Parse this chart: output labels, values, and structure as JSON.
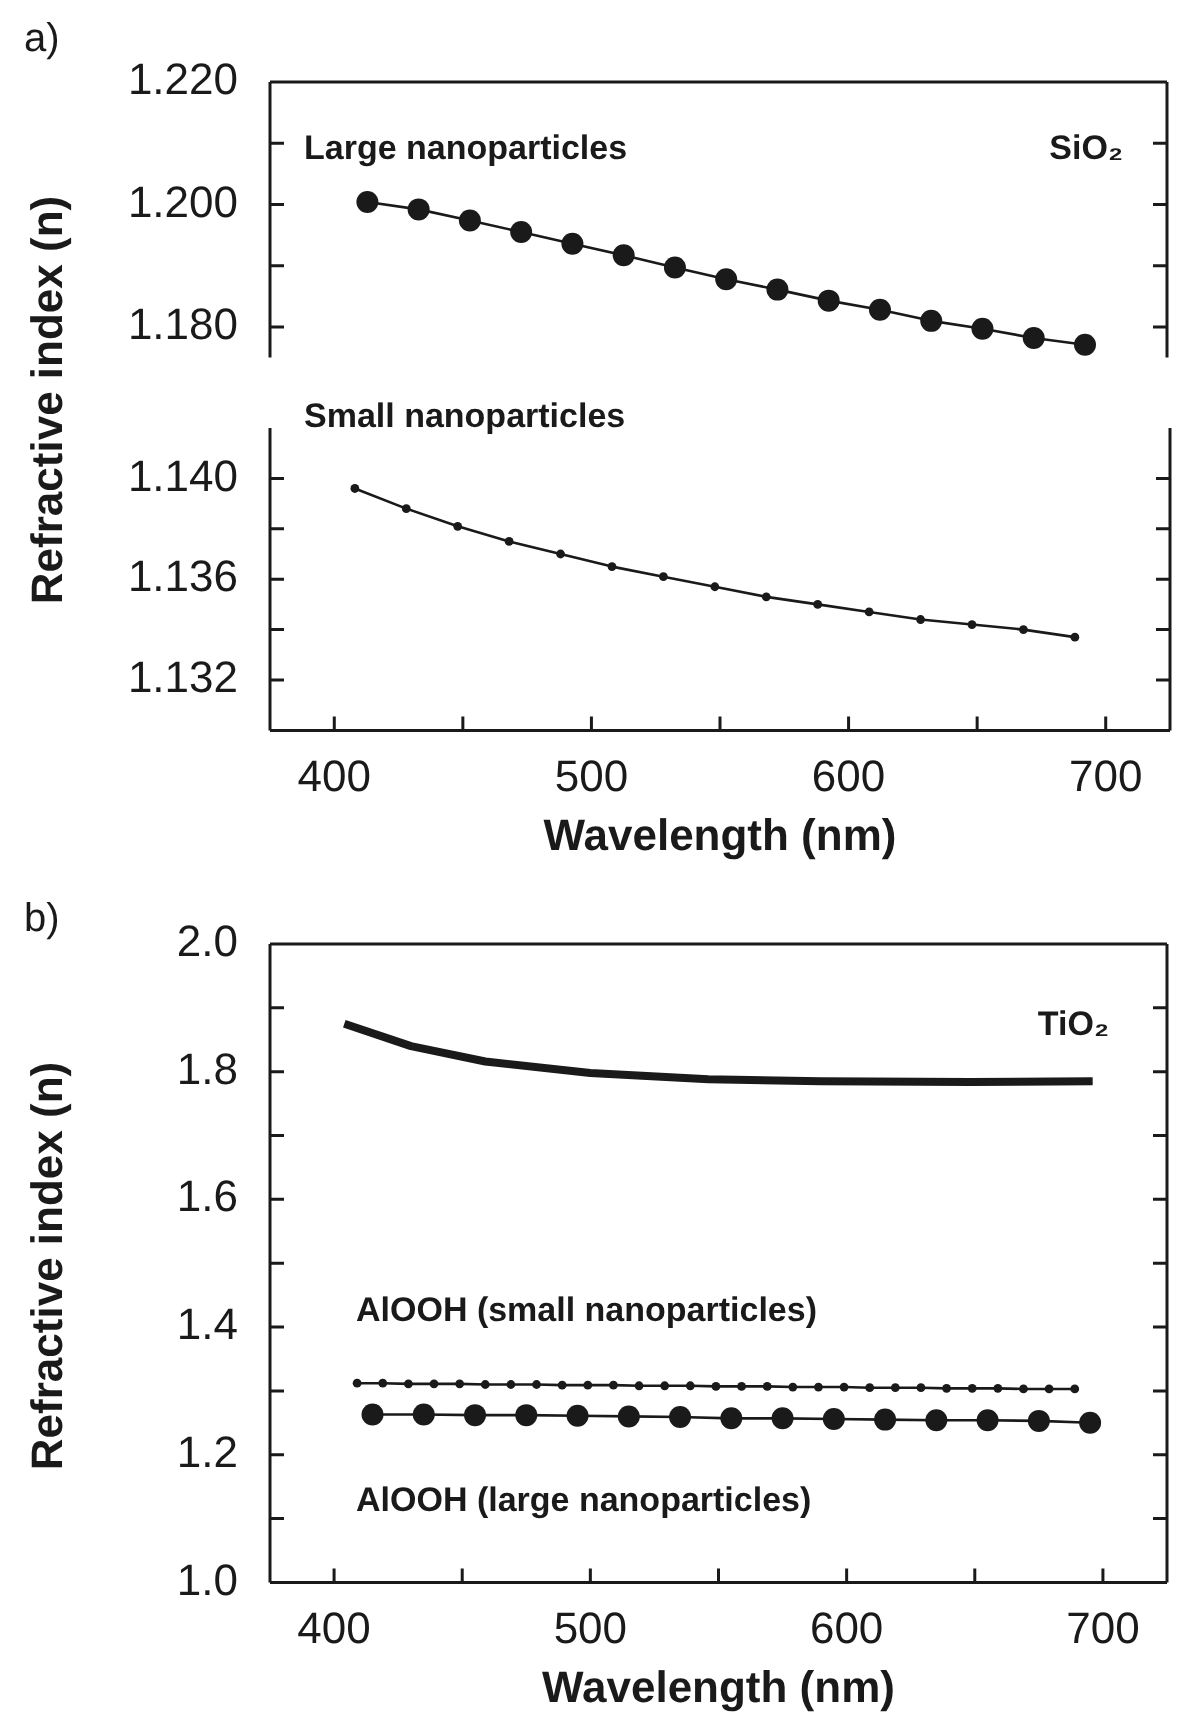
{
  "chart_data": [
    {
      "type": "line",
      "ylabel": "Refractive index (n)",
      "annotations": [
        "a)",
        "SiO₂"
      ],
      "tick_labels": "y",
      "line_style": "solid",
      "xlim": [
        375,
        725
      ],
      "ylim": [
        1.175,
        1.22
      ],
      "yticks": [
        {
          "value": 1.18,
          "label": "1.180"
        },
        {
          "value": 1.19,
          "label": null
        },
        {
          "value": 1.2,
          "label": "1.200"
        },
        {
          "value": 1.21,
          "label": null
        },
        {
          "value": 1.22,
          "label": "1.220"
        }
      ],
      "series": [
        {
          "name": "Large nanoparticles",
          "color": "#1a1a1a",
          "marker": "circle",
          "x": [
            413,
            433,
            453,
            473,
            493,
            513,
            533,
            553,
            573,
            593,
            613,
            633,
            653,
            673,
            693
          ],
          "values": [
            1.2004,
            1.1992,
            1.1974,
            1.1955,
            1.1936,
            1.1917,
            1.1897,
            1.1878,
            1.1861,
            1.1843,
            1.1828,
            1.181,
            1.1797,
            1.1782,
            1.1771
          ]
        }
      ]
    },
    {
      "type": "line",
      "xlabel": "Wavelength (nm)",
      "line_style": "solid",
      "xlim": [
        375,
        725
      ],
      "xticks": [
        400,
        {
          "value": 450,
          "label": null
        },
        500,
        {
          "value": 550,
          "label": null
        },
        600,
        {
          "value": 650,
          "label": null
        },
        700
      ],
      "ylim": [
        1.13,
        1.142
      ],
      "yticks": [
        {
          "value": 1.132,
          "label": "1.132"
        },
        {
          "value": 1.134,
          "label": null
        },
        {
          "value": 1.136,
          "label": "1.136"
        },
        {
          "value": 1.138,
          "label": null
        },
        {
          "value": 1.14,
          "label": "1.140"
        }
      ],
      "series": [
        {
          "name": "Small nanoparticles",
          "color": "#1a1a1a",
          "marker": "circle",
          "x": [
            408,
            428,
            448,
            468,
            488,
            508,
            528,
            548,
            568,
            588,
            608,
            628,
            648,
            668,
            688
          ],
          "values": [
            1.1396,
            1.1388,
            1.1381,
            1.1375,
            1.137,
            1.1365,
            1.1361,
            1.1357,
            1.1353,
            1.135,
            1.1347,
            1.1344,
            1.1342,
            1.134,
            1.1337
          ]
        }
      ]
    },
    {
      "type": "line",
      "xlabel": "Wavelength (nm)",
      "ylabel": "Refractive index (n)",
      "annotations": [
        "b)"
      ],
      "line_style": "solid",
      "xlim": [
        375,
        725
      ],
      "xticks": [
        400,
        {
          "value": 450,
          "label": null
        },
        500,
        {
          "value": 550,
          "label": null
        },
        600,
        {
          "value": 650,
          "label": null
        },
        700
      ],
      "ylim": [
        1.0,
        2.0
      ],
      "yticks": [
        {
          "value": 1.0,
          "label": "1.0"
        },
        {
          "value": 1.1,
          "label": null
        },
        {
          "value": 1.2,
          "label": "1.2"
        },
        {
          "value": 1.3,
          "label": null
        },
        {
          "value": 1.4,
          "label": "1.4"
        },
        {
          "value": 1.5,
          "label": null
        },
        {
          "value": 1.6,
          "label": "1.6"
        },
        {
          "value": 1.7,
          "label": null
        },
        {
          "value": 1.8,
          "label": "1.8"
        },
        {
          "value": 1.9,
          "label": null
        },
        {
          "value": 2.0,
          "label": "2.0"
        }
      ],
      "series": [
        {
          "name": "TiO₂",
          "color": "#1a1a1a",
          "marker": "none",
          "x": [
            404,
            430,
            459,
            500,
            546,
            590,
            648,
            696
          ],
          "values": [
            1.875,
            1.84,
            1.816,
            1.798,
            1.788,
            1.785,
            1.784,
            1.785
          ]
        },
        {
          "name": "AlOOH (small nanoparticles)",
          "color": "#1a1a1a",
          "marker": "circle",
          "x": [
            409,
            419,
            429,
            439,
            449,
            459,
            469,
            479,
            489,
            499,
            509,
            519,
            529,
            539,
            549,
            559,
            569,
            579,
            589,
            599,
            609,
            619,
            629,
            639,
            649,
            659,
            669,
            679,
            689
          ],
          "values": [
            1.312,
            1.312,
            1.311,
            1.311,
            1.311,
            1.31,
            1.31,
            1.31,
            1.309,
            1.309,
            1.309,
            1.308,
            1.308,
            1.308,
            1.307,
            1.307,
            1.307,
            1.306,
            1.306,
            1.306,
            1.305,
            1.305,
            1.305,
            1.304,
            1.304,
            1.304,
            1.303,
            1.303,
            1.303
          ]
        },
        {
          "name": "AlOOH (large nanoparticles)",
          "color": "#1a1a1a",
          "marker": "circle",
          "x": [
            415,
            435,
            455,
            475,
            495,
            515,
            535,
            555,
            575,
            595,
            615,
            635,
            655,
            675,
            695
          ],
          "values": [
            1.263,
            1.263,
            1.262,
            1.262,
            1.261,
            1.26,
            1.259,
            1.257,
            1.257,
            1.256,
            1.255,
            1.254,
            1.254,
            1.253,
            1.25
          ]
        }
      ]
    }
  ]
}
